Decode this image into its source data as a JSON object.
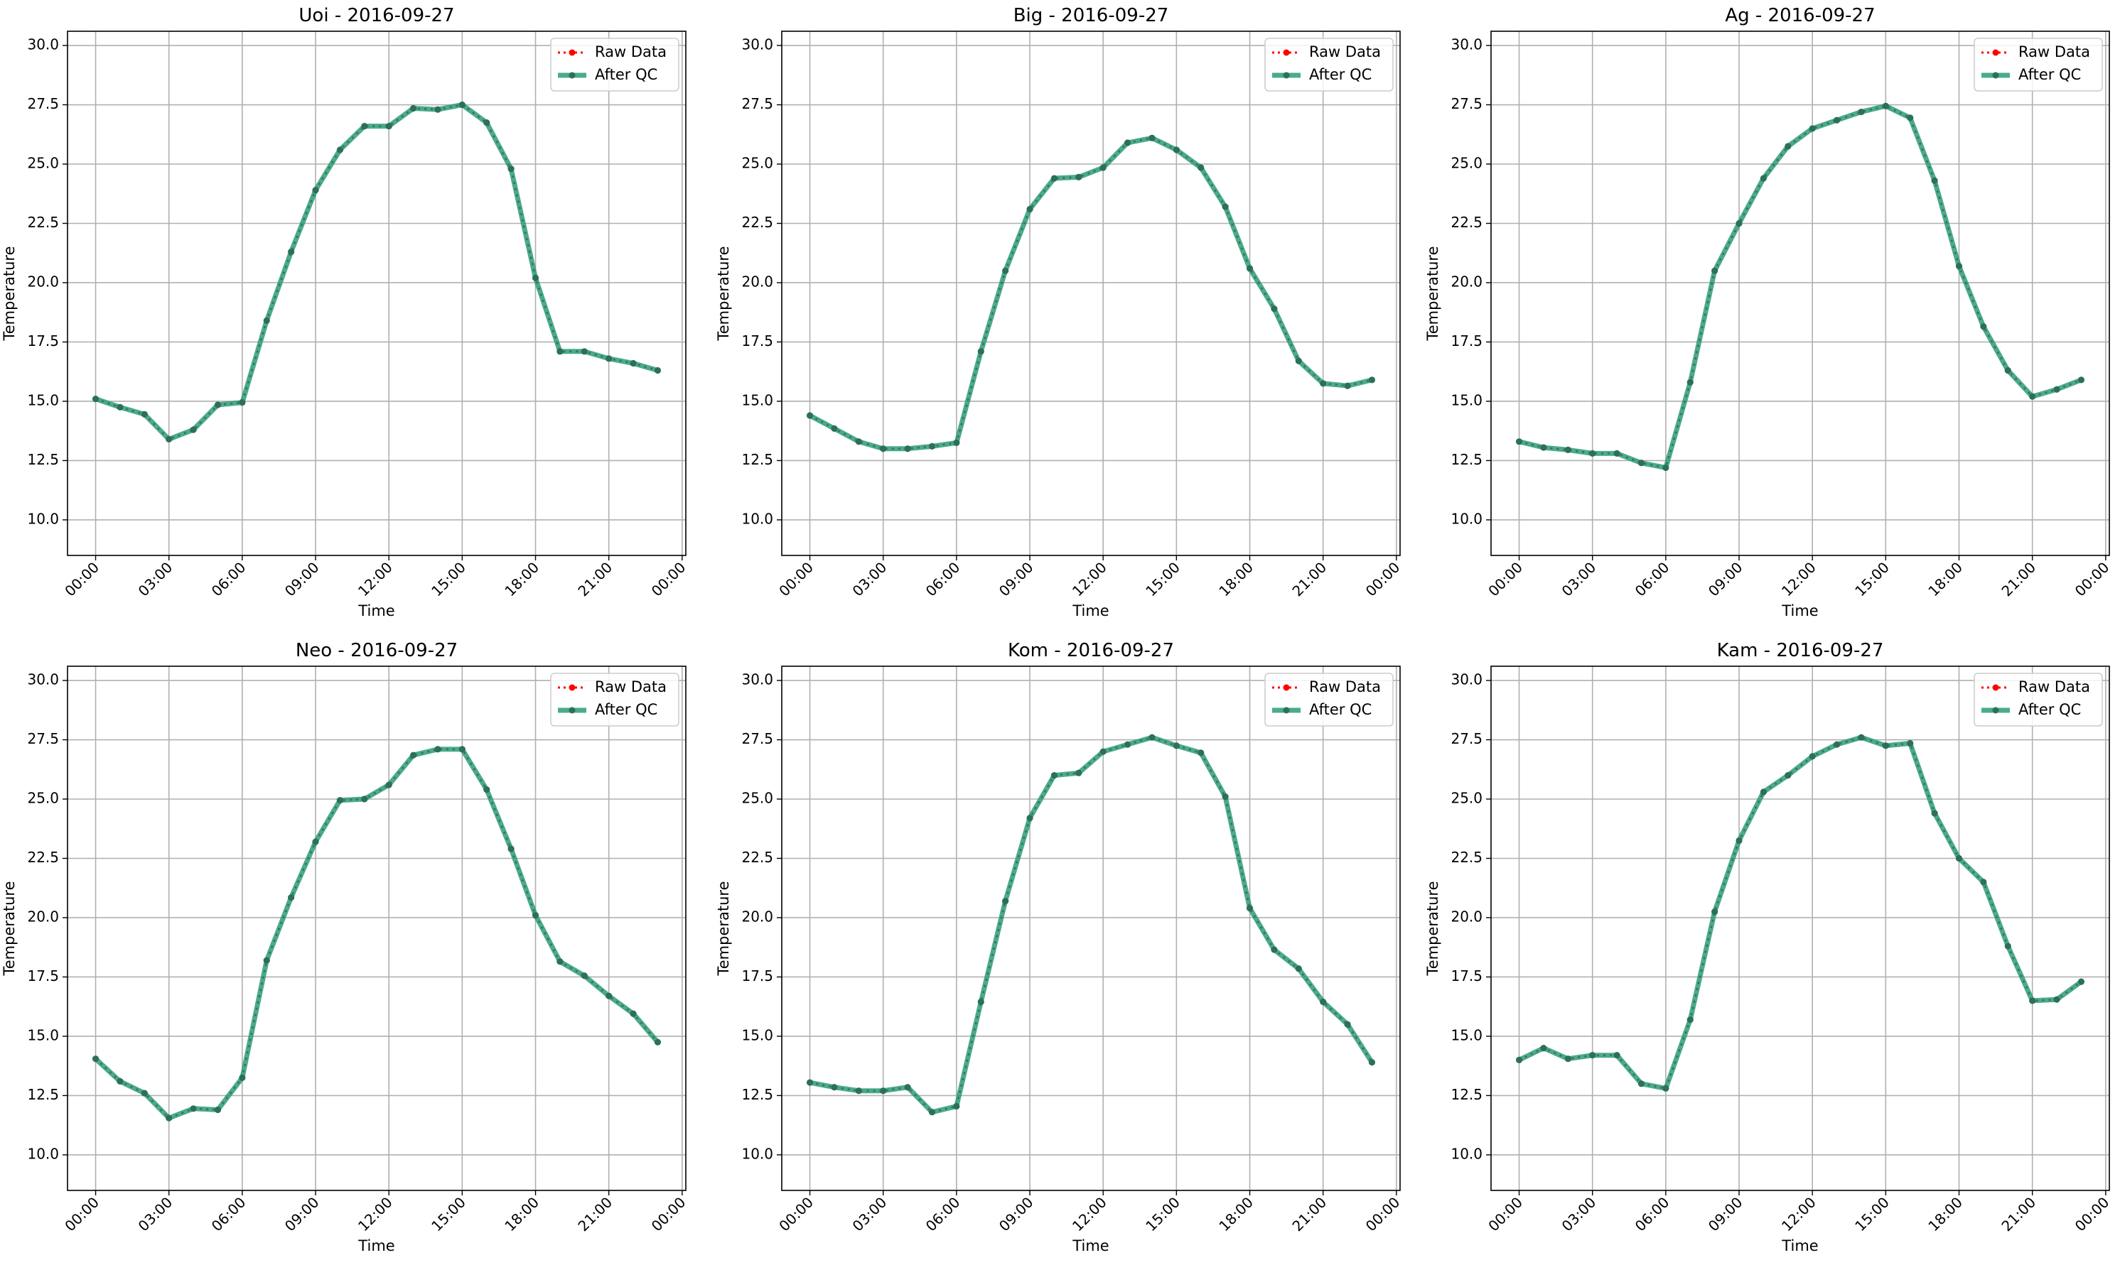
{
  "figure": {
    "colors": {
      "raw": "#ff0000",
      "qc": "#2a9d74",
      "grid": "#b0b0b0"
    }
  },
  "chart_data": [
    {
      "type": "line",
      "title": "Uoi - 2016-09-27",
      "xlabel": "Time",
      "ylabel": "Temperature",
      "ylim": [
        8.5,
        30.6
      ],
      "yticks": [
        "10.0",
        "12.5",
        "15.0",
        "17.5",
        "20.0",
        "22.5",
        "25.0",
        "27.5",
        "30.0"
      ],
      "xticks": [
        "00:00",
        "03:00",
        "06:00",
        "09:00",
        "12:00",
        "15:00",
        "18:00",
        "21:00",
        "00:00"
      ],
      "grid": true,
      "legend": "upper right",
      "x": [
        "00:00",
        "01:00",
        "02:00",
        "03:00",
        "04:00",
        "05:00",
        "06:00",
        "07:00",
        "08:00",
        "09:00",
        "10:00",
        "11:00",
        "12:00",
        "13:00",
        "14:00",
        "15:00",
        "16:00",
        "17:00",
        "18:00",
        "19:00",
        "20:00",
        "21:00",
        "22:00",
        "23:00"
      ],
      "series": [
        {
          "name": "Raw Data",
          "values": [
            15.1,
            14.75,
            14.45,
            13.4,
            13.8,
            14.85,
            14.95,
            18.4,
            21.3,
            23.9,
            25.6,
            26.6,
            26.6,
            27.35,
            27.3,
            27.5,
            26.75,
            24.8,
            20.2,
            17.1,
            17.1,
            16.8,
            16.6,
            16.3
          ]
        },
        {
          "name": "After QC",
          "values": [
            15.1,
            14.75,
            14.45,
            13.4,
            13.8,
            14.85,
            14.95,
            18.4,
            21.3,
            23.9,
            25.6,
            26.6,
            26.6,
            27.35,
            27.3,
            27.5,
            26.75,
            24.8,
            20.2,
            17.1,
            17.1,
            16.8,
            16.6,
            16.3
          ]
        }
      ]
    },
    {
      "type": "line",
      "title": "Big - 2016-09-27",
      "xlabel": "Time",
      "ylabel": "Temperature",
      "ylim": [
        8.5,
        30.6
      ],
      "yticks": [
        "10.0",
        "12.5",
        "15.0",
        "17.5",
        "20.0",
        "22.5",
        "25.0",
        "27.5",
        "30.0"
      ],
      "xticks": [
        "00:00",
        "03:00",
        "06:00",
        "09:00",
        "12:00",
        "15:00",
        "18:00",
        "21:00",
        "00:00"
      ],
      "grid": true,
      "legend": "upper right",
      "x": [
        "00:00",
        "01:00",
        "02:00",
        "03:00",
        "04:00",
        "05:00",
        "06:00",
        "07:00",
        "08:00",
        "09:00",
        "10:00",
        "11:00",
        "12:00",
        "13:00",
        "14:00",
        "15:00",
        "16:00",
        "17:00",
        "18:00",
        "19:00",
        "20:00",
        "21:00",
        "22:00",
        "23:00"
      ],
      "series": [
        {
          "name": "Raw Data",
          "values": [
            14.4,
            13.85,
            13.3,
            13.0,
            13.0,
            13.1,
            13.25,
            17.1,
            20.5,
            23.1,
            24.4,
            24.45,
            24.85,
            25.9,
            26.1,
            25.6,
            24.85,
            23.2,
            20.6,
            18.9,
            16.7,
            15.75,
            15.65,
            15.9
          ]
        },
        {
          "name": "After QC",
          "values": [
            14.4,
            13.85,
            13.3,
            13.0,
            13.0,
            13.1,
            13.25,
            17.1,
            20.5,
            23.1,
            24.4,
            24.45,
            24.85,
            25.9,
            26.1,
            25.6,
            24.85,
            23.2,
            20.6,
            18.9,
            16.7,
            15.75,
            15.65,
            15.9
          ]
        }
      ]
    },
    {
      "type": "line",
      "title": "Ag - 2016-09-27",
      "xlabel": "Time",
      "ylabel": "Temperature",
      "ylim": [
        8.5,
        30.6
      ],
      "yticks": [
        "10.0",
        "12.5",
        "15.0",
        "17.5",
        "20.0",
        "22.5",
        "25.0",
        "27.5",
        "30.0"
      ],
      "xticks": [
        "00:00",
        "03:00",
        "06:00",
        "09:00",
        "12:00",
        "15:00",
        "18:00",
        "21:00",
        "00:00"
      ],
      "grid": true,
      "legend": "upper right",
      "x": [
        "00:00",
        "01:00",
        "02:00",
        "03:00",
        "04:00",
        "05:00",
        "06:00",
        "07:00",
        "08:00",
        "09:00",
        "10:00",
        "11:00",
        "12:00",
        "13:00",
        "14:00",
        "15:00",
        "16:00",
        "17:00",
        "18:00",
        "19:00",
        "20:00",
        "21:00",
        "22:00",
        "23:00"
      ],
      "series": [
        {
          "name": "Raw Data",
          "values": [
            13.3,
            13.05,
            12.95,
            12.8,
            12.8,
            12.4,
            12.2,
            15.8,
            20.5,
            22.5,
            24.4,
            25.75,
            26.5,
            26.85,
            27.2,
            27.45,
            26.95,
            24.3,
            20.7,
            18.15,
            16.3,
            15.2,
            15.5,
            15.9
          ]
        },
        {
          "name": "After QC",
          "values": [
            13.3,
            13.05,
            12.95,
            12.8,
            12.8,
            12.4,
            12.2,
            15.8,
            20.5,
            22.5,
            24.4,
            25.75,
            26.5,
            26.85,
            27.2,
            27.45,
            26.95,
            24.3,
            20.7,
            18.15,
            16.3,
            15.2,
            15.5,
            15.9
          ]
        }
      ]
    },
    {
      "type": "line",
      "title": "Neo - 2016-09-27",
      "xlabel": "Time",
      "ylabel": "Temperature",
      "ylim": [
        8.5,
        30.6
      ],
      "yticks": [
        "10.0",
        "12.5",
        "15.0",
        "17.5",
        "20.0",
        "22.5",
        "25.0",
        "27.5",
        "30.0"
      ],
      "xticks": [
        "00:00",
        "03:00",
        "06:00",
        "09:00",
        "12:00",
        "15:00",
        "18:00",
        "21:00",
        "00:00"
      ],
      "grid": true,
      "legend": "upper right",
      "x": [
        "00:00",
        "01:00",
        "02:00",
        "03:00",
        "04:00",
        "05:00",
        "06:00",
        "07:00",
        "08:00",
        "09:00",
        "10:00",
        "11:00",
        "12:00",
        "13:00",
        "14:00",
        "15:00",
        "16:00",
        "17:00",
        "18:00",
        "19:00",
        "20:00",
        "21:00",
        "22:00",
        "23:00"
      ],
      "series": [
        {
          "name": "Raw Data",
          "values": [
            14.05,
            13.1,
            12.6,
            11.55,
            11.95,
            11.9,
            13.25,
            18.2,
            20.85,
            23.2,
            24.95,
            25.0,
            25.6,
            26.85,
            27.1,
            27.1,
            25.4,
            22.9,
            20.1,
            18.15,
            17.55,
            16.7,
            15.95,
            14.75
          ]
        },
        {
          "name": "After QC",
          "values": [
            14.05,
            13.1,
            12.6,
            11.55,
            11.95,
            11.9,
            13.25,
            18.2,
            20.85,
            23.2,
            24.95,
            25.0,
            25.6,
            26.85,
            27.1,
            27.1,
            25.4,
            22.9,
            20.1,
            18.15,
            17.55,
            16.7,
            15.95,
            14.75
          ]
        }
      ]
    },
    {
      "type": "line",
      "title": "Kom - 2016-09-27",
      "xlabel": "Time",
      "ylabel": "Temperature",
      "ylim": [
        8.5,
        30.6
      ],
      "yticks": [
        "10.0",
        "12.5",
        "15.0",
        "17.5",
        "20.0",
        "22.5",
        "25.0",
        "27.5",
        "30.0"
      ],
      "xticks": [
        "00:00",
        "03:00",
        "06:00",
        "09:00",
        "12:00",
        "15:00",
        "18:00",
        "21:00",
        "00:00"
      ],
      "grid": true,
      "legend": "upper right",
      "x": [
        "00:00",
        "01:00",
        "02:00",
        "03:00",
        "04:00",
        "05:00",
        "06:00",
        "07:00",
        "08:00",
        "09:00",
        "10:00",
        "11:00",
        "12:00",
        "13:00",
        "14:00",
        "15:00",
        "16:00",
        "17:00",
        "18:00",
        "19:00",
        "20:00",
        "21:00",
        "22:00",
        "23:00"
      ],
      "series": [
        {
          "name": "Raw Data",
          "values": [
            13.05,
            12.85,
            12.7,
            12.7,
            12.85,
            11.8,
            12.05,
            16.45,
            20.7,
            24.2,
            26.0,
            26.1,
            27.0,
            27.3,
            27.6,
            27.25,
            26.95,
            25.1,
            20.4,
            18.65,
            17.85,
            16.45,
            15.5,
            13.9
          ]
        },
        {
          "name": "After QC",
          "values": [
            13.05,
            12.85,
            12.7,
            12.7,
            12.85,
            11.8,
            12.05,
            16.45,
            20.7,
            24.2,
            26.0,
            26.1,
            27.0,
            27.3,
            27.6,
            27.25,
            26.95,
            25.1,
            20.4,
            18.65,
            17.85,
            16.45,
            15.5,
            13.9
          ]
        }
      ]
    },
    {
      "type": "line",
      "title": "Kam - 2016-09-27",
      "xlabel": "Time",
      "ylabel": "Temperature",
      "ylim": [
        8.5,
        30.6
      ],
      "yticks": [
        "10.0",
        "12.5",
        "15.0",
        "17.5",
        "20.0",
        "22.5",
        "25.0",
        "27.5",
        "30.0"
      ],
      "xticks": [
        "00:00",
        "03:00",
        "06:00",
        "09:00",
        "12:00",
        "15:00",
        "18:00",
        "21:00",
        "00:00"
      ],
      "grid": true,
      "legend": "upper right",
      "x": [
        "00:00",
        "01:00",
        "02:00",
        "03:00",
        "04:00",
        "05:00",
        "06:00",
        "07:00",
        "08:00",
        "09:00",
        "10:00",
        "11:00",
        "12:00",
        "13:00",
        "14:00",
        "15:00",
        "16:00",
        "17:00",
        "18:00",
        "19:00",
        "20:00",
        "21:00",
        "22:00",
        "23:00"
      ],
      "series": [
        {
          "name": "Raw Data",
          "values": [
            14.0,
            14.5,
            14.05,
            14.2,
            14.2,
            13.0,
            12.8,
            15.7,
            20.25,
            23.25,
            25.3,
            26.0,
            26.8,
            27.3,
            27.6,
            27.25,
            27.35,
            24.4,
            22.5,
            21.5,
            18.8,
            16.5,
            16.55,
            17.3
          ]
        },
        {
          "name": "After QC",
          "values": [
            14.0,
            14.5,
            14.05,
            14.2,
            14.2,
            13.0,
            12.8,
            15.7,
            20.25,
            23.25,
            25.3,
            26.0,
            26.8,
            27.3,
            27.6,
            27.25,
            27.35,
            24.4,
            22.5,
            21.5,
            18.8,
            16.5,
            16.55,
            17.3
          ]
        }
      ]
    }
  ]
}
